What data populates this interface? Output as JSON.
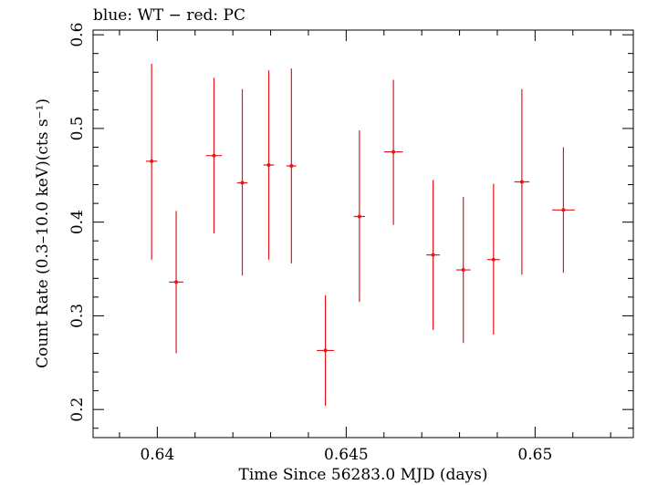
{
  "chart_data": {
    "type": "scatter",
    "title": "blue: WT − red: PC",
    "xlabel": "Time Since 56283.0 MJD (days)",
    "ylabel": "Count Rate (0.3–10.0 keV)(cts s⁻¹)",
    "xlim": [
      0.6383,
      0.6526
    ],
    "ylim": [
      0.17,
      0.605
    ],
    "xticks": [
      0.64,
      0.645,
      0.65
    ],
    "xtick_labels": [
      "0.64",
      "0.645",
      "0.65"
    ],
    "yticks": [
      0.2,
      0.3,
      0.4,
      0.5,
      0.6
    ],
    "ytick_labels": [
      "0.2",
      "0.3",
      "0.4",
      "0.5",
      "0.6"
    ],
    "grid": false,
    "series": [
      {
        "color": "#e8141c",
        "points": [
          {
            "x": 0.63985,
            "xerr": 0.00015,
            "y": 0.465,
            "ylo": 0.36,
            "yhi": 0.569
          },
          {
            "x": 0.6405,
            "xerr": 0.00019,
            "y": 0.336,
            "ylo": 0.26,
            "yhi": 0.412
          },
          {
            "x": 0.6415,
            "xerr": 0.00021,
            "y": 0.471,
            "ylo": 0.388,
            "yhi": 0.554
          },
          {
            "x": 0.64225,
            "xerr": 0.00014,
            "y": 0.442,
            "ylo": 0.343,
            "yhi": 0.542
          },
          {
            "x": 0.64295,
            "xerr": 0.00014,
            "y": 0.461,
            "ylo": 0.36,
            "yhi": 0.562
          },
          {
            "x": 0.64355,
            "xerr": 0.00013,
            "y": 0.46,
            "ylo": 0.356,
            "yhi": 0.564
          },
          {
            "x": 0.64445,
            "xerr": 0.00023,
            "y": 0.263,
            "ylo": 0.204,
            "yhi": 0.322
          },
          {
            "x": 0.64535,
            "xerr": 0.00015,
            "y": 0.406,
            "ylo": 0.315,
            "yhi": 0.498
          },
          {
            "x": 0.64625,
            "xerr": 0.00025,
            "y": 0.475,
            "ylo": 0.397,
            "yhi": 0.552
          },
          {
            "x": 0.6473,
            "xerr": 0.00018,
            "y": 0.365,
            "ylo": 0.285,
            "yhi": 0.445
          },
          {
            "x": 0.6481,
            "xerr": 0.00019,
            "y": 0.349,
            "ylo": 0.271,
            "yhi": 0.427
          },
          {
            "x": 0.6489,
            "xerr": 0.00017,
            "y": 0.36,
            "ylo": 0.28,
            "yhi": 0.441
          },
          {
            "x": 0.64965,
            "xerr": 0.0002,
            "y": 0.443,
            "ylo": 0.344,
            "yhi": 0.542
          },
          {
            "x": 0.65075,
            "xerr": 0.0003,
            "y": 0.413,
            "ylo": 0.346,
            "yhi": 0.48
          }
        ]
      }
    ]
  }
}
